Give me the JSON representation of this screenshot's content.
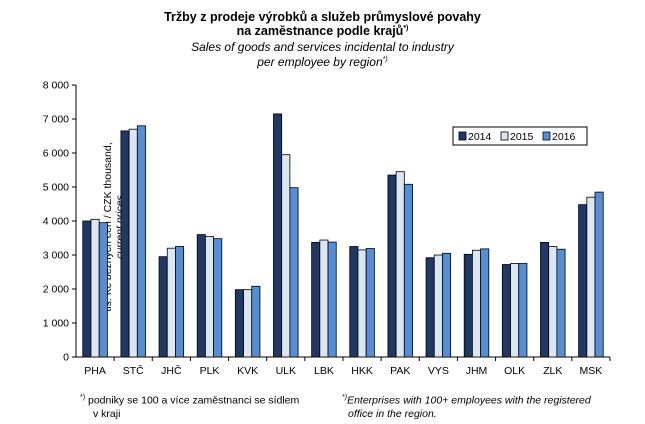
{
  "chart_data": {
    "type": "bar",
    "title": "Tržby z prodeje výrobků a služeb průmyslové povahy",
    "title_line2": "na zaměstnance  podle krajů",
    "title_mark": "*)",
    "subtitle": "Sales of goods and services incidental to industry",
    "subtitle_line2": "per employee by region",
    "subtitle_mark": "*)",
    "ylabel": "tis. Kč běžných cen / CZK thousand,",
    "ylabel_line2": "current prices",
    "xlabel": "",
    "ylim": [
      0,
      8000
    ],
    "yticks": [
      0,
      1000,
      2000,
      3000,
      4000,
      5000,
      6000,
      7000,
      8000
    ],
    "ytick_labels": [
      "0",
      "1 000",
      "2 000",
      "3 000",
      "4 000",
      "5 000",
      "6 000",
      "7 000",
      "8 000"
    ],
    "grid": false,
    "legend_position": "top-right",
    "categories": [
      "PHA",
      "STČ",
      "JHČ",
      "PLK",
      "KVK",
      "ULK",
      "LBK",
      "HKK",
      "PAK",
      "VYS",
      "JHM",
      "OLK",
      "ZLK",
      "MSK"
    ],
    "series": [
      {
        "name": "2014",
        "color": "#1f3864",
        "values": [
          4000,
          6650,
          2950,
          3600,
          1980,
          7150,
          3370,
          3250,
          5350,
          2920,
          3020,
          2720,
          3370,
          4480
        ]
      },
      {
        "name": "2015",
        "color": "#dce6f2",
        "values": [
          4050,
          6700,
          3200,
          3540,
          1980,
          5950,
          3440,
          3150,
          5450,
          3000,
          3140,
          2750,
          3250,
          4700
        ]
      },
      {
        "name": "2016",
        "color": "#558ed5",
        "values": [
          3950,
          6800,
          3250,
          3480,
          2080,
          4980,
          3380,
          3190,
          5080,
          3050,
          3180,
          2750,
          3170,
          4850
        ]
      }
    ]
  },
  "footnotes": {
    "left_mark": "*)",
    "left_line1": "podniky se 100 a více zaměstnanci se sídlem",
    "left_line2": "v kraji",
    "right_mark": "*)",
    "right_line1": "Enterprises with 100+ employees with the registered",
    "right_line2": "office in the region."
  }
}
